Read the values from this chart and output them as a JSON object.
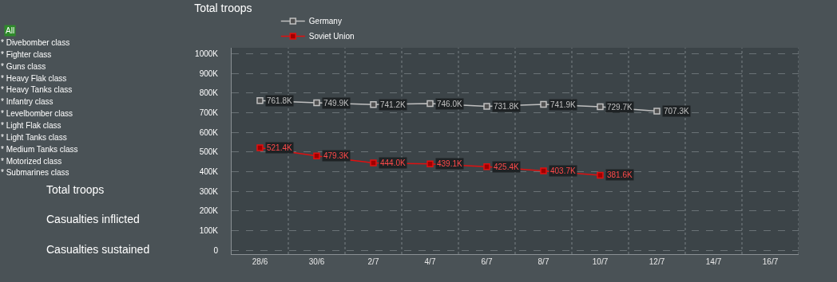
{
  "chart_data": {
    "type": "line",
    "title": "Total troops",
    "categories": [
      "28/6",
      "30/6",
      "2/7",
      "4/7",
      "6/7",
      "8/7",
      "10/7",
      "12/7",
      "14/7",
      "16/7"
    ],
    "series": [
      {
        "name": "Germany",
        "color": "#c0c0c0",
        "values": [
          761800,
          749900,
          741200,
          746000,
          731800,
          741900,
          729700,
          707300,
          null,
          null
        ],
        "value_labels": [
          "761.8K",
          "749.9K",
          "741.2K",
          "746.0K",
          "731.8K",
          "741.9K",
          "729.7K",
          "707.3K",
          null,
          null
        ]
      },
      {
        "name": "Soviet Union",
        "color": "#e01010",
        "values": [
          521400,
          479300,
          444000,
          439100,
          425400,
          403700,
          381600,
          null,
          null,
          null
        ],
        "value_labels": [
          "521.4K",
          "479.3K",
          "444.0K",
          "439.1K",
          "425.4K",
          "403.7K",
          "381.6K",
          null,
          null,
          null
        ]
      }
    ],
    "ylim": [
      -20000,
      1030000
    ],
    "yticks": [
      {
        "value": 0,
        "label": "0"
      },
      {
        "value": 100000,
        "label": "100K"
      },
      {
        "value": 200000,
        "label": "200K"
      },
      {
        "value": 300000,
        "label": "300K"
      },
      {
        "value": 400000,
        "label": "400K"
      },
      {
        "value": 500000,
        "label": "500K"
      },
      {
        "value": 600000,
        "label": "600K"
      },
      {
        "value": 700000,
        "label": "700K"
      },
      {
        "value": 800000,
        "label": "800K"
      },
      {
        "value": 900000,
        "label": "900K"
      },
      {
        "value": 1000000,
        "label": "1000K"
      }
    ],
    "grid": true,
    "legend": "top left",
    "marker": "square",
    "line_style": "solid",
    "annotations": [
      "All",
      "* Divebomber class",
      "* Fighter class",
      "* Guns class",
      "* Heavy Flak class",
      "* Heavy Tanks class",
      "* Infantry class",
      "* Levelbomber class",
      "* Light Flak class",
      "* Light Tanks class",
      "* Medium Tanks class",
      "* Motorized class",
      "* Submarines class",
      "Total troops",
      "Casualties inflicted",
      "Casualties sustained"
    ]
  }
}
